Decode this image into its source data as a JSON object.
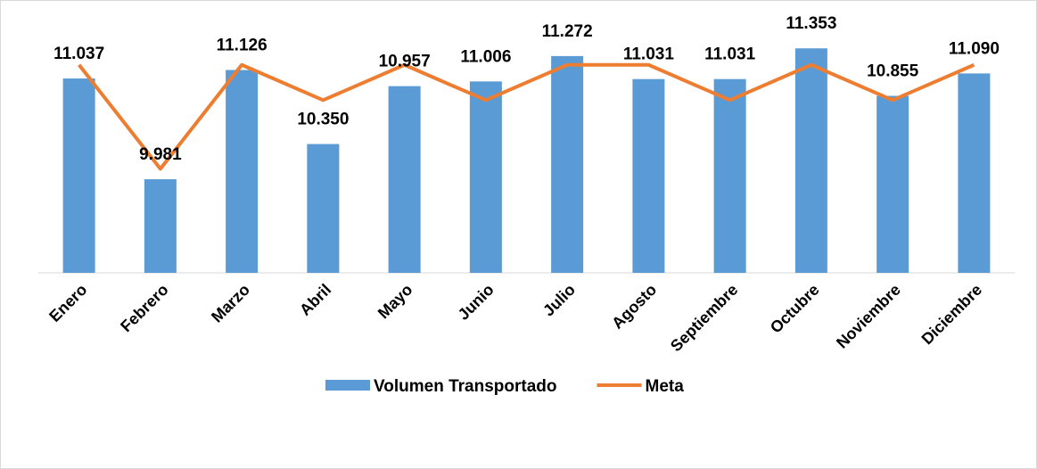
{
  "chart_data": {
    "type": "bar",
    "categories": [
      "Enero",
      "Febrero",
      "Marzo",
      "Abril",
      "Mayo",
      "Junio",
      "Julio",
      "Agosto",
      "Septiembre",
      "Octubre",
      "Noviembre",
      "Diciembre"
    ],
    "series": [
      {
        "name": "Volumen Transportado",
        "type": "bar",
        "color": "#5b9bd5",
        "values": [
          11.037,
          9.981,
          11.126,
          10.35,
          10.957,
          11.006,
          11.272,
          11.031,
          11.031,
          11.353,
          10.855,
          11.09
        ],
        "value_labels": [
          "11.037",
          "9.981",
          "11.126",
          "10.350",
          "10.957",
          "11.006",
          "11.272",
          "11.031",
          "11.031",
          "11.353",
          "10.855",
          "11.090"
        ]
      },
      {
        "name": "Meta",
        "type": "line",
        "color": "#ed7d31",
        "values": [
          11.18,
          10.09,
          11.18,
          10.81,
          11.18,
          10.81,
          11.18,
          11.18,
          10.81,
          11.18,
          10.81,
          11.18
        ]
      }
    ],
    "ylim": [
      9,
      11.5
    ],
    "legend": "bottom"
  }
}
